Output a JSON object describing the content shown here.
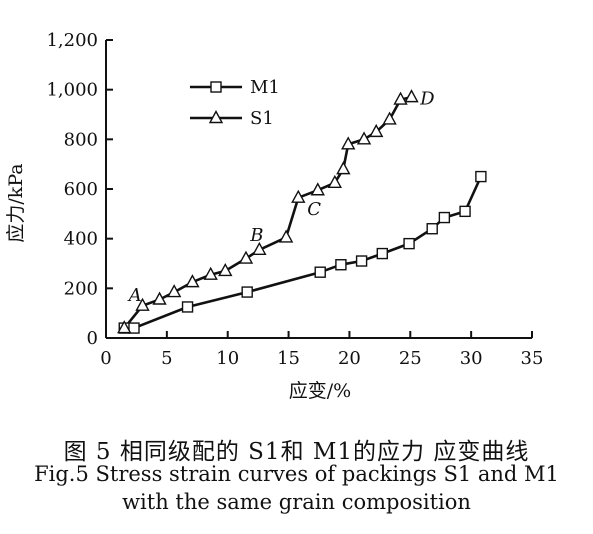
{
  "chart_data": {
    "type": "line",
    "xlabel": "应变/%",
    "ylabel": "应力/kPa",
    "xlim": [
      0,
      35
    ],
    "ylim": [
      0,
      1200
    ],
    "xticks": [
      "0",
      "5",
      "10",
      "15",
      "20",
      "25",
      "30",
      "35"
    ],
    "yticks": [
      "0",
      "200",
      "400",
      "600",
      "800",
      "1,000",
      "1,200"
    ],
    "grid": false,
    "legend": "top-left",
    "series": [
      {
        "name": "M1",
        "marker": "square",
        "color": "#111111",
        "points": [
          [
            1.5,
            40
          ],
          [
            2.3,
            40
          ],
          [
            6.7,
            125
          ],
          [
            11.6,
            185
          ],
          [
            17.6,
            265
          ],
          [
            19.3,
            295
          ],
          [
            21.0,
            310
          ],
          [
            22.7,
            340
          ],
          [
            24.9,
            380
          ],
          [
            26.8,
            440
          ],
          [
            27.8,
            485
          ],
          [
            29.5,
            510
          ],
          [
            30.8,
            650
          ]
        ]
      },
      {
        "name": "S1",
        "marker": "triangle",
        "color": "#111111",
        "points": [
          [
            1.5,
            40
          ],
          [
            3.0,
            130
          ],
          [
            4.4,
            155
          ],
          [
            5.6,
            185
          ],
          [
            7.1,
            225
          ],
          [
            8.6,
            255
          ],
          [
            9.8,
            270
          ],
          [
            11.5,
            320
          ],
          [
            12.6,
            355
          ],
          [
            14.8,
            405
          ],
          [
            15.8,
            565
          ],
          [
            17.4,
            595
          ],
          [
            18.8,
            625
          ],
          [
            19.5,
            680
          ],
          [
            19.9,
            780
          ],
          [
            21.2,
            800
          ],
          [
            22.2,
            830
          ],
          [
            23.3,
            880
          ],
          [
            24.2,
            960
          ],
          [
            25.1,
            970
          ]
        ]
      }
    ],
    "annotations": [
      {
        "text": "A",
        "x": 2.4,
        "y": 150
      },
      {
        "text": "B",
        "x": 12.4,
        "y": 390
      },
      {
        "text": "C",
        "x": 17.1,
        "y": 495
      },
      {
        "text": "D",
        "x": 26.4,
        "y": 940
      }
    ]
  },
  "caption": {
    "zh": "图 5  相同级配的 S1和 M1的应力 应变曲线",
    "en_line1": "Fig.5  Stress strain curves of packings S1 and M1",
    "en_line2": "with the same grain composition"
  }
}
